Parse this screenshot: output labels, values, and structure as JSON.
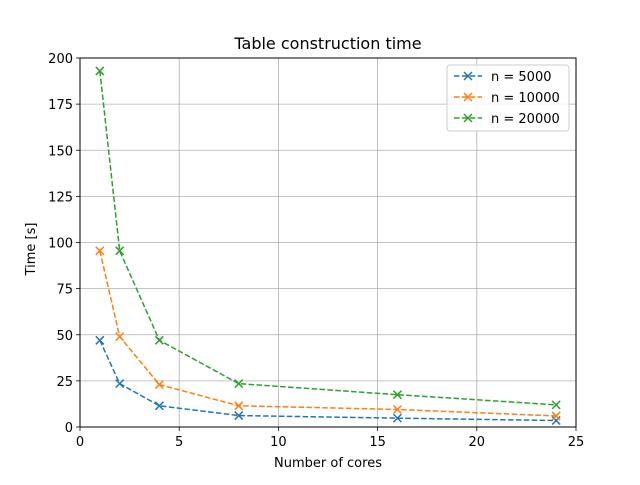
{
  "chart_data": {
    "type": "line",
    "title": "Table construction time",
    "xlabel": "Number of cores",
    "ylabel": "Time [s]",
    "xlim": [
      0,
      25
    ],
    "ylim": [
      0,
      200
    ],
    "xticks": [
      "0",
      "5",
      "10",
      "15",
      "20",
      "25"
    ],
    "yticks": [
      "0",
      "25",
      "50",
      "75",
      "100",
      "125",
      "150",
      "175",
      "200"
    ],
    "grid": true,
    "legend_position": "top-right",
    "marker": "x",
    "line_style": "dashed",
    "x": [
      1,
      2,
      4,
      8,
      16,
      24
    ],
    "series": [
      {
        "name": "n = 5000",
        "color": "#1f77b4",
        "values": [
          47,
          23.5,
          11.5,
          6.2,
          4.8,
          3.5
        ]
      },
      {
        "name": "n = 10000",
        "color": "#ff7f0e",
        "values": [
          95.5,
          49,
          23,
          11.5,
          9.5,
          6
        ]
      },
      {
        "name": "n = 20000",
        "color": "#2ca02c",
        "values": [
          193,
          95.5,
          47,
          23.5,
          17.5,
          12
        ]
      }
    ]
  }
}
